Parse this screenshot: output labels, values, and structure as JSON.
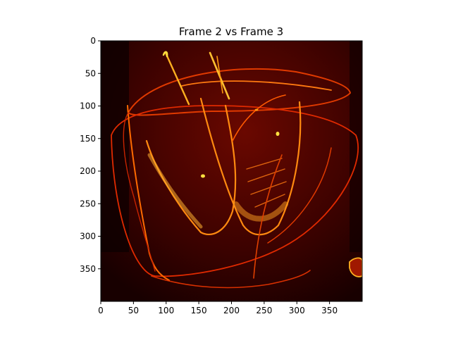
{
  "chart_data": {
    "type": "heatmap",
    "title": "Frame 2 vs Frame 3",
    "colormap": "hot",
    "colors": {
      "background": "#1c0000",
      "dark": "#3a0000",
      "mid": "#7a0a00",
      "line": "#e03000",
      "bright": "#ff9900",
      "highlight": "#ffe040"
    },
    "image_width": 400,
    "image_height": 400,
    "xlim": [
      0,
      400
    ],
    "ylim": [
      400,
      0
    ],
    "xticks": [
      0,
      50,
      100,
      150,
      200,
      250,
      300,
      350
    ],
    "yticks": [
      0,
      50,
      100,
      150,
      200,
      250,
      300,
      350
    ],
    "xlabel": "",
    "ylabel": "",
    "grid": false
  }
}
